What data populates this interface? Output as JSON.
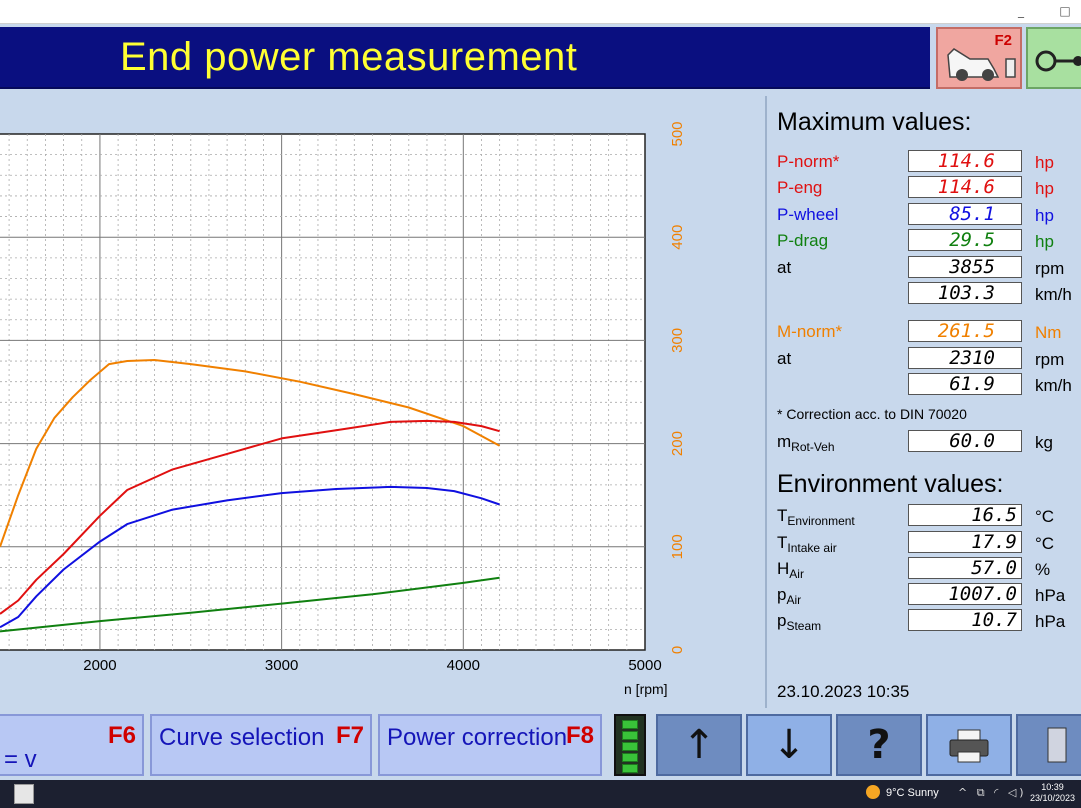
{
  "window": {
    "minimize": "_",
    "maximize": "□"
  },
  "header": {
    "title": "End power measurement",
    "f2_key": "F2"
  },
  "colors": {
    "p_norm": "#e01010",
    "p_wheel": "#1010e0",
    "p_drag": "#108010",
    "m_norm": "#f08000",
    "title_bg": "#0a0f80",
    "title_text": "#ffff33"
  },
  "chart_data": {
    "type": "line",
    "xlabel": "n [rpm]",
    "x_ticks": [
      "2000",
      "3000",
      "4000",
      "5000"
    ],
    "y2_ticks": [
      "0",
      "100",
      "200",
      "300",
      "400",
      "500"
    ],
    "xlim": [
      1450,
      5000
    ],
    "y2lim": [
      0,
      500
    ],
    "grid": true,
    "series": [
      {
        "key": "torque",
        "color": "#f08000",
        "x": [
          1450,
          1550,
          1650,
          1750,
          1850,
          1950,
          2050,
          2150,
          2300,
          2500,
          2800,
          3100,
          3400,
          3700,
          4000,
          4200
        ],
        "y": [
          100,
          150,
          195,
          225,
          245,
          262,
          277,
          280,
          281,
          277,
          270,
          260,
          248,
          235,
          217,
          198
        ]
      },
      {
        "key": "p_norm",
        "color": "#e01010",
        "x": [
          1450,
          1550,
          1650,
          1800,
          2000,
          2150,
          2400,
          2700,
          3000,
          3300,
          3600,
          3800,
          3950,
          4100,
          4200
        ],
        "y": [
          35,
          48,
          68,
          93,
          130,
          155,
          175,
          190,
          205,
          213,
          221,
          222,
          221,
          217,
          212
        ]
      },
      {
        "key": "p_wheel",
        "color": "#1010e0",
        "x": [
          1450,
          1550,
          1650,
          1800,
          2000,
          2150,
          2400,
          2700,
          3000,
          3300,
          3600,
          3800,
          3950,
          4100,
          4200
        ],
        "y": [
          22,
          32,
          52,
          78,
          105,
          122,
          136,
          145,
          152,
          156,
          158,
          157,
          154,
          147,
          141
        ]
      },
      {
        "key": "p_drag",
        "color": "#108010",
        "x": [
          1450,
          2000,
          2500,
          3000,
          3500,
          4000,
          4200
        ],
        "y": [
          18,
          28,
          36,
          45,
          54,
          65,
          70
        ]
      }
    ]
  },
  "maximum": {
    "title": "Maximum values:",
    "p_norm": {
      "label": "P-norm*",
      "value": "114.6",
      "unit": "hp"
    },
    "p_eng": {
      "label": "P-eng",
      "value": "114.6",
      "unit": "hp"
    },
    "p_wheel": {
      "label": "P-wheel",
      "value": "85.1",
      "unit": "hp"
    },
    "p_drag": {
      "label": "P-drag",
      "value": "29.5",
      "unit": "hp"
    },
    "at1": {
      "label": "at",
      "value": "3855",
      "unit": "rpm"
    },
    "speed1": {
      "value": "103.3",
      "unit": "km/h"
    },
    "m_norm": {
      "label": "M-norm*",
      "value": "261.5",
      "unit": "Nm"
    },
    "at2": {
      "label": "at",
      "value": "2310",
      "unit": "rpm"
    },
    "speed2": {
      "value": "61.9",
      "unit": "km/h"
    },
    "correction_note": "* Correction acc. to DIN 70020",
    "mrot": {
      "label_main": "m",
      "label_sub": "Rot-Veh",
      "value": "60.0",
      "unit": "kg"
    }
  },
  "environment": {
    "title": "Environment values:",
    "t_env": {
      "label_main": "T",
      "label_sub": "Environment",
      "value": "16.5",
      "unit": "°C"
    },
    "t_intake": {
      "label_main": "T",
      "label_sub": "Intake air",
      "value": "17.9",
      "unit": "°C"
    },
    "h_air": {
      "label_main": "H",
      "label_sub": "Air",
      "value": "57.0",
      "unit": "%"
    },
    "p_air": {
      "label_main": "p",
      "label_sub": "Air",
      "value": "1007.0",
      "unit": "hPa"
    },
    "p_steam": {
      "label_main": "p",
      "label_sub": "Steam",
      "value": "10.7",
      "unit": "hPa"
    }
  },
  "datetime": "23.10.2023  10:35",
  "fkeys": {
    "f6_sub": "= v",
    "f6_key": "F6",
    "f7_label": "Curve selection",
    "f7_key": "F7",
    "f8_label": "Power correction",
    "f8_key": "F8",
    "up_icon": "↑",
    "down_icon": "↓",
    "help_icon": "?"
  },
  "taskbar": {
    "weather": "9°C  Sunny",
    "time": "10:39",
    "date": "23/10/2023"
  }
}
